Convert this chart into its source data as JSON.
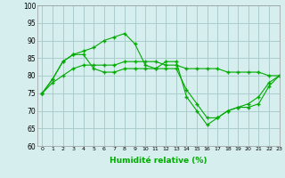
{
  "xlabel": "Humidité relative (%)",
  "bg_color": "#d6eeee",
  "grid_color": "#aacccc",
  "line_color": "#00aa00",
  "marker": "+",
  "ylim": [
    60,
    100
  ],
  "xlim": [
    -0.5,
    23
  ],
  "yticks": [
    60,
    65,
    70,
    75,
    80,
    85,
    90,
    95,
    100
  ],
  "xticks": [
    0,
    1,
    2,
    3,
    4,
    5,
    6,
    7,
    8,
    9,
    10,
    11,
    12,
    13,
    14,
    15,
    16,
    17,
    18,
    19,
    20,
    21,
    22,
    23
  ],
  "series": [
    [
      75,
      79,
      84,
      86,
      87,
      88,
      90,
      91,
      92,
      89,
      83,
      82,
      84,
      84,
      74,
      70,
      66,
      68,
      70,
      71,
      72,
      74,
      78,
      80
    ],
    [
      75,
      79,
      84,
      86,
      86,
      82,
      81,
      81,
      82,
      82,
      82,
      82,
      82,
      82,
      76,
      72,
      68,
      68,
      70,
      71,
      71,
      72,
      77,
      80
    ],
    [
      75,
      78,
      80,
      82,
      83,
      83,
      83,
      83,
      84,
      84,
      84,
      84,
      83,
      83,
      82,
      82,
      82,
      82,
      81,
      81,
      81,
      81,
      80,
      80
    ]
  ]
}
